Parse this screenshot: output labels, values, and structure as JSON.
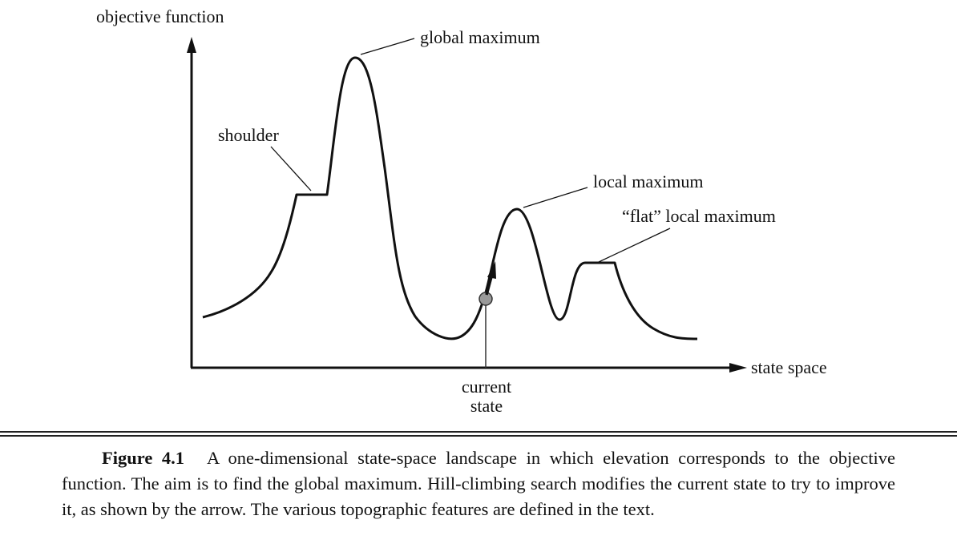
{
  "diagram": {
    "y_axis_label": "objective function",
    "x_axis_label": "state space",
    "annotations": {
      "global_maximum": "global maximum",
      "shoulder": "shoulder",
      "local_maximum": "local maximum",
      "flat_local_maximum": "“flat” local maximum",
      "current_state_line1": "current",
      "current_state_line2": "state"
    },
    "colors": {
      "curve": "#111111",
      "state_marker": "#9a9a9a"
    }
  },
  "caption": {
    "label": "Figure 4.1",
    "text": "A one-dimensional state-space landscape in which elevation corresponds to the objective function. The aim is to find the global maximum. Hill-climbing search modifies the current state to try to improve it, as shown by the arrow. The various topographic features are defined in the text."
  }
}
